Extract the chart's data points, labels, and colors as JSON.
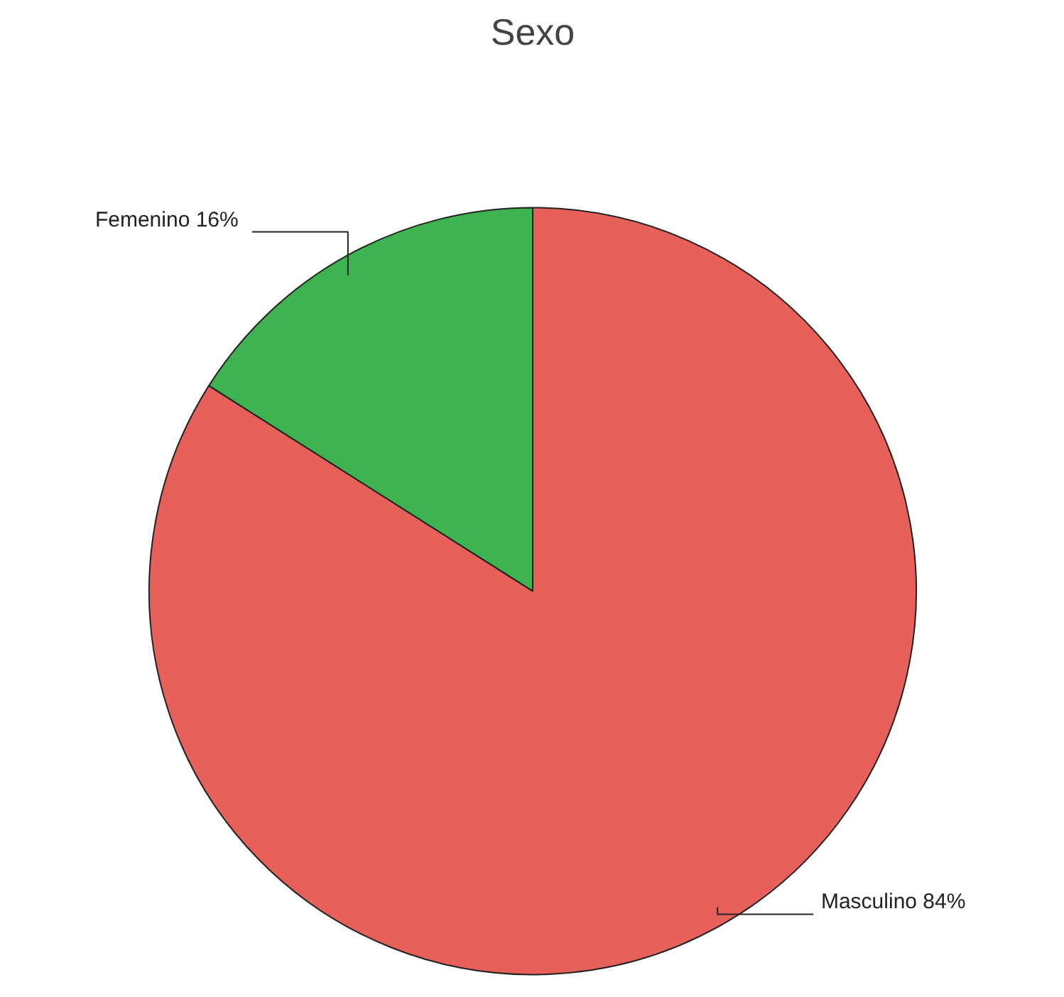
{
  "chart_data": {
    "type": "pie",
    "title": "Sexo",
    "categories": [
      "Masculino",
      "Femenino"
    ],
    "values": [
      84,
      16
    ],
    "colors": [
      "#e8605a",
      "#3fb34f"
    ],
    "value_labels": [
      "84%",
      "16%"
    ]
  }
}
